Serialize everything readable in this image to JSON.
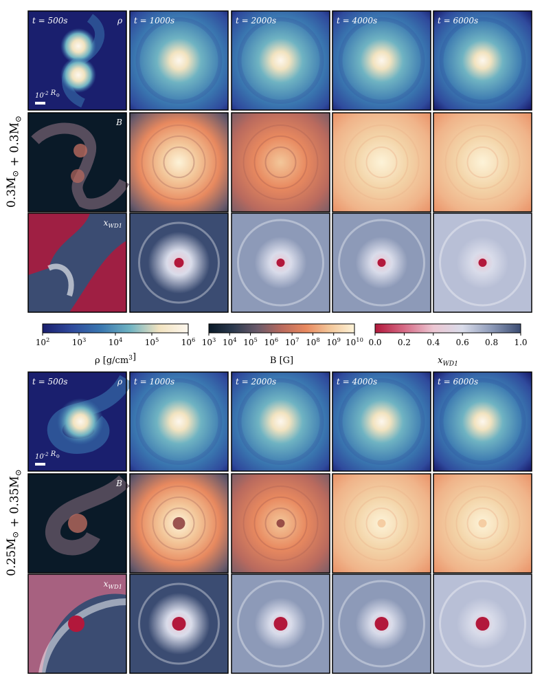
{
  "figure": {
    "times": [
      "t = 500s",
      "t = 1000s",
      "t = 2000s",
      "t = 4000s",
      "t = 6000s"
    ],
    "quantity_labels": {
      "density": "ρ",
      "magnetic": "B",
      "composition": "x_WD1"
    },
    "scalebar_label": "10^-2 R_⊙",
    "panels": [
      {
        "label": "0.3M_⊙ + 0.3M_⊙",
        "rows": [
          {
            "quantity": "density",
            "label": "ρ",
            "show_label_col": 0
          },
          {
            "quantity": "magnetic",
            "label": "B",
            "show_label_col": 0
          },
          {
            "quantity": "composition",
            "label": "x_WD1",
            "show_label_col": 0
          }
        ]
      },
      {
        "label": "0.25M_⊙ + 0.35M_⊙",
        "rows": [
          {
            "quantity": "density",
            "label": "ρ",
            "show_label_col": 0
          },
          {
            "quantity": "magnetic",
            "label": "B",
            "show_label_col": 0
          },
          {
            "quantity": "composition",
            "label": "x_WD1",
            "show_label_col": 0
          }
        ]
      }
    ],
    "colorbars": [
      {
        "name": "density",
        "label": "ρ [g/cm^3]",
        "scale": "log",
        "range": [
          100,
          1000000
        ],
        "tick_labels": [
          "10^2",
          "10^3",
          "10^4",
          "10^5",
          "10^6"
        ],
        "colors": [
          "#1a1f6e",
          "#2f4a9c",
          "#3a77b0",
          "#6fb3c2",
          "#f2e3c0",
          "#fdf7ee"
        ]
      },
      {
        "name": "magnetic",
        "label": "B [G]",
        "scale": "log",
        "range": [
          1000,
          10000000000
        ],
        "tick_labels": [
          "10^3",
          "10^4",
          "10^5",
          "10^6",
          "10^7",
          "10^8",
          "10^9",
          "10^10"
        ],
        "colors": [
          "#0a1a28",
          "#2c3a4e",
          "#6a5a6a",
          "#b96a5e",
          "#e8895f",
          "#f3c79a",
          "#fdf3d8"
        ]
      },
      {
        "name": "composition",
        "label": "x_WD1",
        "scale": "linear",
        "range": [
          0.0,
          1.0
        ],
        "tick_labels": [
          "0.0",
          "0.2",
          "0.4",
          "0.6",
          "0.8",
          "1.0"
        ],
        "colors": [
          "#b2183b",
          "#d66b86",
          "#ecc6d2",
          "#d9dcea",
          "#8d9ab8",
          "#3b4c72"
        ]
      }
    ]
  }
}
